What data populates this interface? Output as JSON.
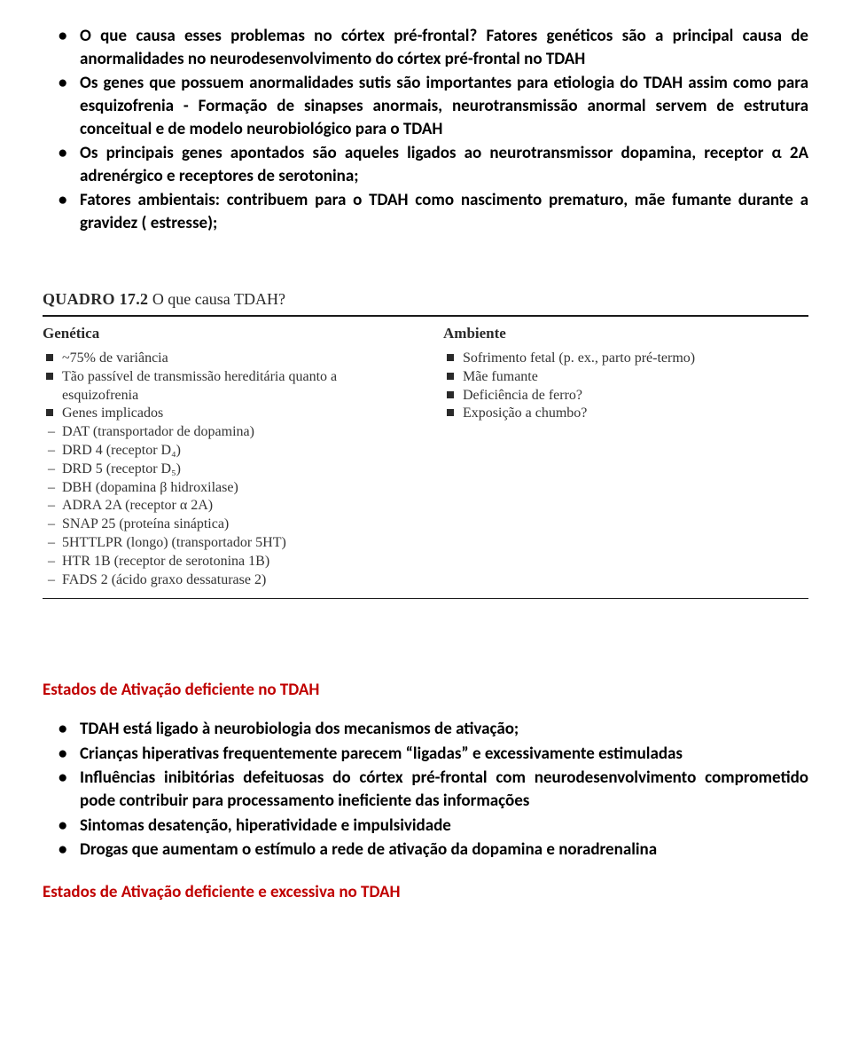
{
  "top_bullets": [
    "O que causa esses problemas no córtex pré-frontal? Fatores genéticos são a principal causa de anormalidades no neurodesenvolvimento do córtex pré-frontal no TDAH",
    "Os genes que possuem anormalidades sutis são importantes para etiologia do TDAH assim como para esquizofrenia - Formação de sinapses anormais, neurotransmissão anormal servem de estrutura conceitual e de modelo neurobiológico para o TDAH",
    "Os principais genes apontados são aqueles ligados ao neurotransmissor dopamina, receptor α 2A adrenérgico e receptores de serotonina;",
    "Fatores ambientais: contribuem para o TDAH como nascimento prematuro, mãe fumante durante a gravidez ( estresse);"
  ],
  "scan": {
    "label": "QUADRO 17.2",
    "title": "O que causa TDAH?",
    "left_header": "Genética",
    "right_header": "Ambiente",
    "left": [
      {
        "t": "square",
        "text": "~75% de variância"
      },
      {
        "t": "square",
        "text": "Tão passível de transmissão hereditária quanto a esquizofrenia"
      },
      {
        "t": "square",
        "text": "Genes implicados"
      },
      {
        "t": "dash",
        "text": "DAT (transportador de dopamina)"
      },
      {
        "t": "dash",
        "text": "DRD 4 (receptor D₄)"
      },
      {
        "t": "dash",
        "text": "DRD 5 (receptor D₅)"
      },
      {
        "t": "dash",
        "text": "DBH (dopamina β hidroxilase)"
      },
      {
        "t": "dash",
        "text": "ADRA 2A (receptor α 2A)"
      },
      {
        "t": "dash",
        "text": "SNAP 25 (proteína sináptica)"
      },
      {
        "t": "dash",
        "text": "5HTTLPR (longo) (transportador 5HT)"
      },
      {
        "t": "dash",
        "text": "HTR 1B (receptor de serotonina 1B)"
      },
      {
        "t": "dash",
        "text": "FADS 2 (ácido graxo dessaturase 2)"
      }
    ],
    "right": [
      {
        "t": "square",
        "text": "Sofrimento fetal (p. ex., parto pré-termo)"
      },
      {
        "t": "square",
        "text": "Mãe fumante"
      },
      {
        "t": "square",
        "text": "Deficiência de ferro?"
      },
      {
        "t": "square",
        "text": "Exposição a chumbo?"
      }
    ]
  },
  "red1": "Estados de Ativação deficiente no TDAH",
  "lower_bullets": [
    "TDAH está ligado à neurobiologia dos mecanismos de ativação;",
    "Crianças hiperativas frequentemente parecem “ligadas” e excessivamente estimuladas",
    "Influências inibitórias defeituosas do córtex pré-frontal com neurodesenvolvimento comprometido pode contribuir para processamento ineficiente das informações",
    "Sintomas desatenção, hiperatividade e impulsividade",
    "Drogas que aumentam o estímulo a rede de ativação da dopamina e noradrenalina"
  ],
  "red2": "Estados de Ativação deficiente e excessiva no TDAH"
}
